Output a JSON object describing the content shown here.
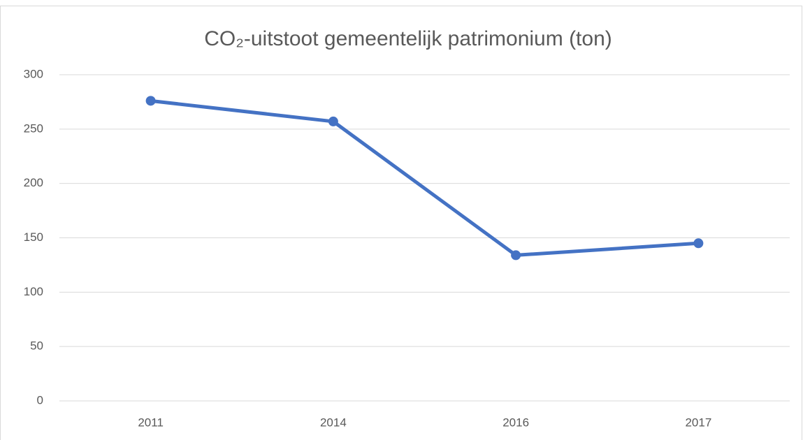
{
  "chart_data": {
    "type": "line",
    "title": "CO₂-uitstoot gemeentelijk patrimonium (ton)",
    "categories": [
      "2011",
      "2014",
      "2016",
      "2017"
    ],
    "values": [
      276,
      257,
      134,
      145
    ],
    "color": "#4472c4",
    "ylim": [
      0,
      300
    ],
    "yticks": [
      0,
      50,
      100,
      150,
      200,
      250,
      300
    ],
    "grid": true
  }
}
